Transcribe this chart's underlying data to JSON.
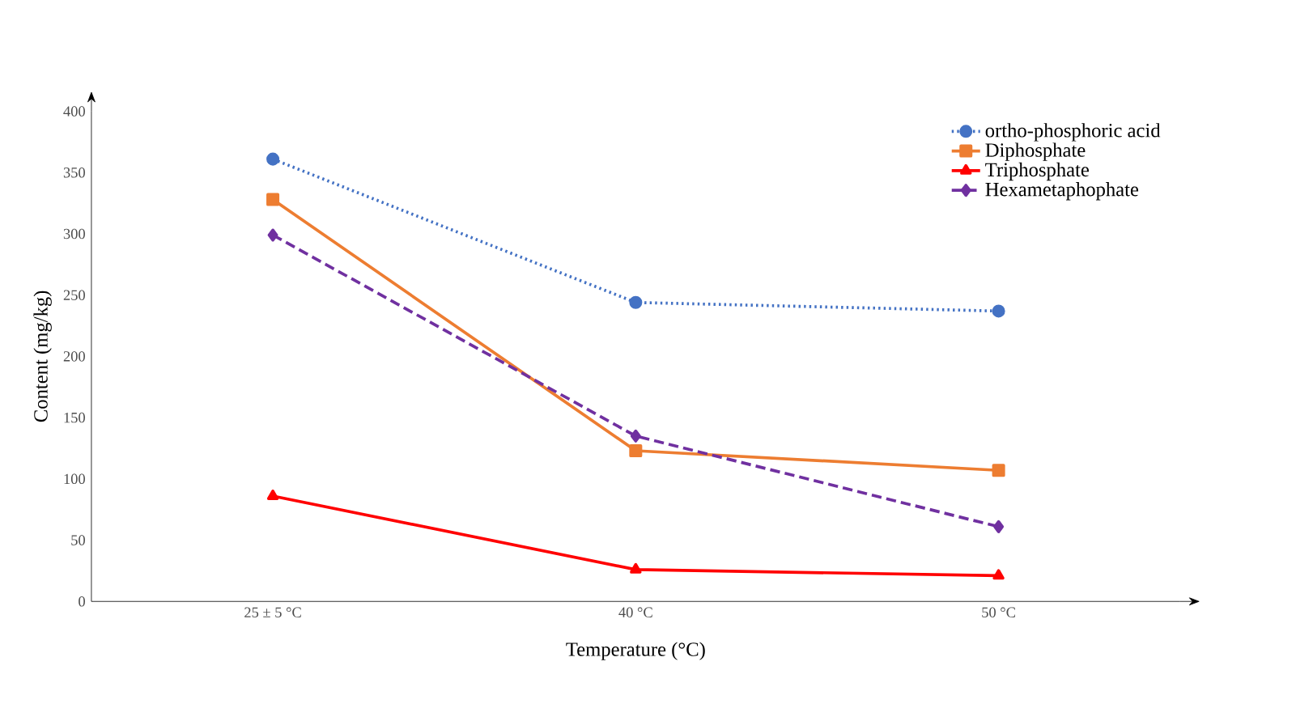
{
  "chart_data": {
    "type": "line",
    "xlabel": "Temperature (°C)",
    "ylabel": "Content (mg/kg)",
    "categories": [
      "25 ± 5 °C",
      "40 °C",
      "50 °C"
    ],
    "series": [
      {
        "name": "ortho-phosphoric acid",
        "color": "#4472c4",
        "values": [
          361,
          244,
          237
        ],
        "marker": "circle",
        "line_style": "dotted"
      },
      {
        "name": "Diphosphate",
        "color": "#ed7d31",
        "values": [
          328,
          123,
          107
        ],
        "marker": "square",
        "line_style": "solid"
      },
      {
        "name": "Triphosphate",
        "color": "#ff0000",
        "values": [
          86,
          26,
          21
        ],
        "marker": "triangle",
        "line_style": "solid"
      },
      {
        "name": "Hexametaphophate",
        "color": "#7030a0",
        "values": [
          299,
          135,
          61
        ],
        "marker": "diamond",
        "line_style": "dashed"
      }
    ],
    "ylim": [
      0,
      400
    ],
    "yticks": [
      0,
      50,
      100,
      150,
      200,
      250,
      300,
      350,
      400
    ],
    "grid": false,
    "legend": "top right"
  }
}
